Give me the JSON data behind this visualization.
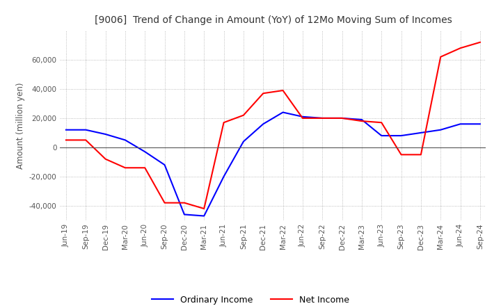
{
  "title": "[9006]  Trend of Change in Amount (YoY) of 12Mo Moving Sum of Incomes",
  "ylabel": "Amount (million yen)",
  "background_color": "#ffffff",
  "grid_color": "#aaaaaa",
  "ordinary_income_color": "#0000ff",
  "net_income_color": "#ff0000",
  "x_labels": [
    "Jun-19",
    "Sep-19",
    "Dec-19",
    "Mar-20",
    "Jun-20",
    "Sep-20",
    "Dec-20",
    "Mar-21",
    "Jun-21",
    "Sep-21",
    "Dec-21",
    "Mar-22",
    "Jun-22",
    "Sep-22",
    "Dec-22",
    "Mar-23",
    "Jun-23",
    "Sep-23",
    "Dec-23",
    "Mar-24",
    "Jun-24",
    "Sep-24"
  ],
  "ordinary_income": [
    12000,
    12000,
    9000,
    5000,
    -3000,
    -12000,
    -46000,
    -47000,
    -20000,
    4000,
    16000,
    24000,
    21000,
    20000,
    20000,
    19000,
    8000,
    8000,
    10000,
    12000,
    16000,
    16000
  ],
  "net_income": [
    5000,
    5000,
    -8000,
    -14000,
    -14000,
    -38000,
    -38000,
    -42000,
    17000,
    22000,
    37000,
    39000,
    20000,
    20000,
    20000,
    18000,
    17000,
    -5000,
    -5000,
    62000,
    68000,
    72000
  ],
  "ylim": [
    -50000,
    80000
  ],
  "yticks": [
    -40000,
    -20000,
    0,
    20000,
    40000,
    60000
  ]
}
